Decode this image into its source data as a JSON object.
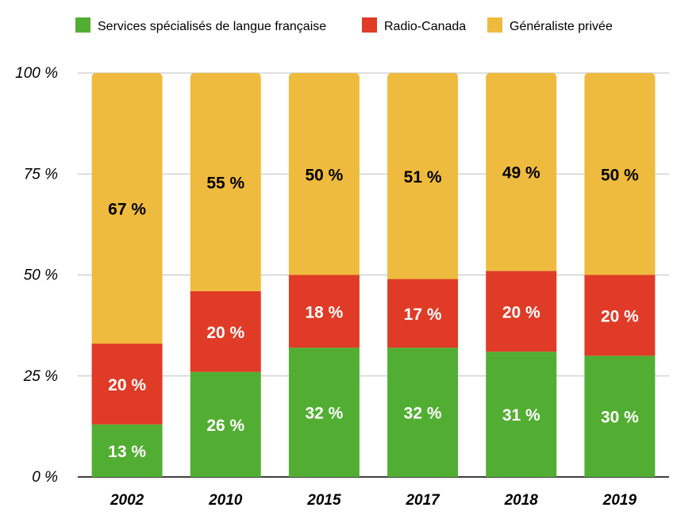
{
  "chart_data": {
    "type": "bar",
    "stacked": true,
    "categories": [
      "2002",
      "2010",
      "2015",
      "2017",
      "2018",
      "2019"
    ],
    "series": [
      {
        "name": "Services spécialisés de langue française",
        "color": "#52ae32",
        "label_color": "#ffffff",
        "values": [
          13,
          26,
          32,
          32,
          31,
          30
        ],
        "labels": [
          "13 %",
          "26 %",
          "32 %",
          "32 %",
          "31 %",
          "30 %"
        ]
      },
      {
        "name": "Radio-Canada",
        "color": "#df3b27",
        "label_color": "#ffffff",
        "values": [
          20,
          20,
          18,
          17,
          20,
          20
        ],
        "labels": [
          "20 %",
          "20 %",
          "18 %",
          "17 %",
          "20 %",
          "20 %"
        ]
      },
      {
        "name": "Généraliste privée",
        "color": "#efbb3e",
        "label_color": "#000000",
        "values": [
          67,
          55,
          50,
          51,
          49,
          50
        ],
        "labels": [
          "67 %",
          "55 %",
          "50 %",
          "51 %",
          "49 %",
          "50 %"
        ]
      }
    ],
    "yticks": [
      0,
      25,
      50,
      75,
      100
    ],
    "ytick_labels": [
      "0 %",
      "25 %",
      "50 %",
      "75 %",
      "100 %"
    ],
    "ylim": [
      0,
      100
    ],
    "grid": true,
    "legend_position": "top",
    "title": "",
    "xlabel": "",
    "ylabel": ""
  }
}
